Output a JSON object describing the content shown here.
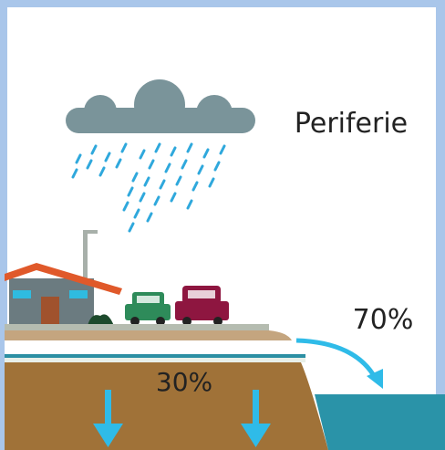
{
  "label": "Periferie",
  "runoff": "70%",
  "infiltration": "30%"
}
